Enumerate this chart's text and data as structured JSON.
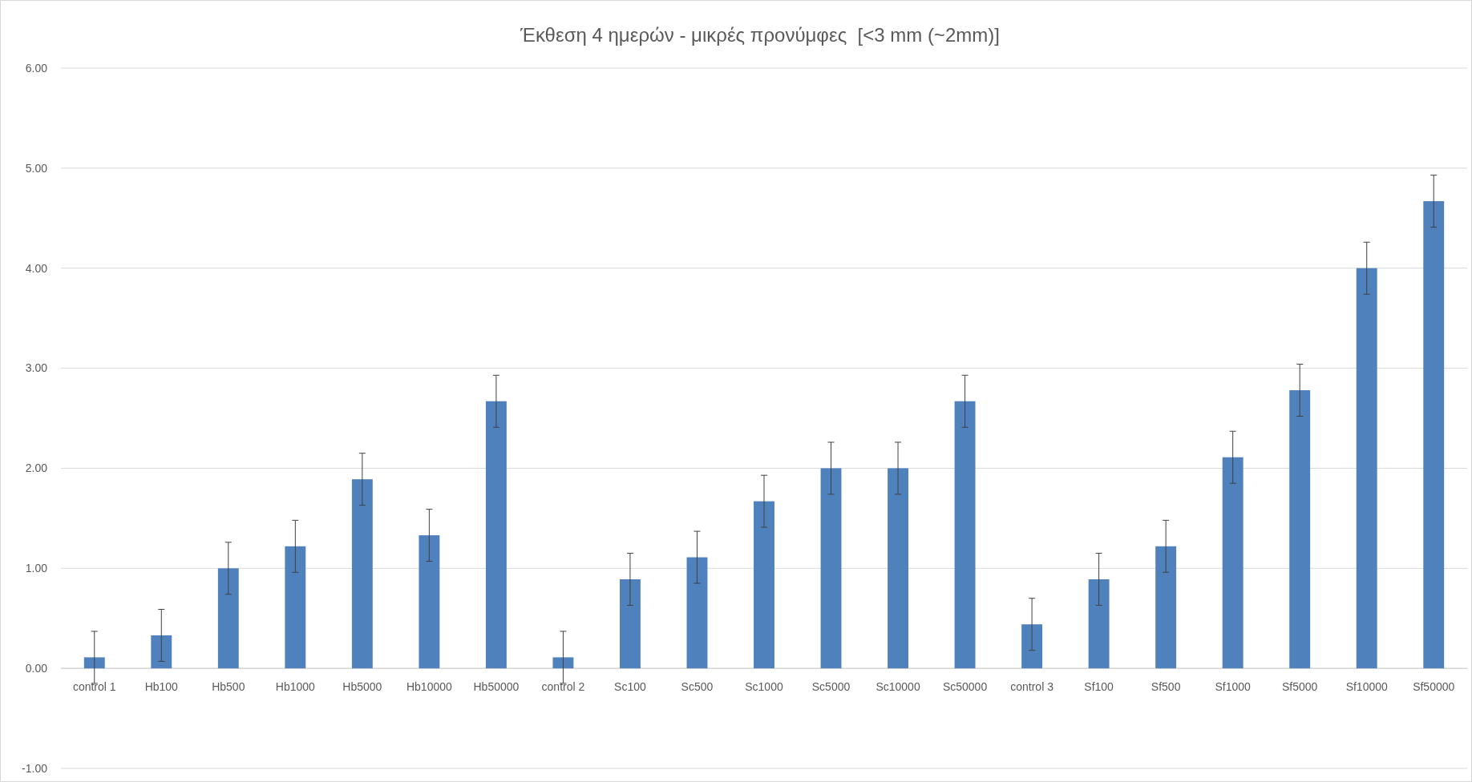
{
  "chart_data": {
    "type": "bar",
    "title": "Έκθεση 4 ημερών - μικρές προνύμφες  [<3 mm (~2mm)]",
    "categories": [
      "control 1",
      "Hb100",
      "Hb500",
      "Hb1000",
      "Hb5000",
      "Hb10000",
      "Hb50000",
      "control 2",
      "Sc100",
      "Sc500",
      "Sc1000",
      "Sc5000",
      "Sc10000",
      "Sc50000",
      "control 3",
      "Sf100",
      "Sf500",
      "Sf1000",
      "Sf5000",
      "Sf10000",
      "Sf50000"
    ],
    "values": [
      0.11,
      0.33,
      1.0,
      1.22,
      1.89,
      1.33,
      2.67,
      0.11,
      0.89,
      1.11,
      1.67,
      2.0,
      2.0,
      2.67,
      0.44,
      0.89,
      1.22,
      2.11,
      2.78,
      4.0,
      4.67
    ],
    "errors": [
      0.26,
      0.26,
      0.26,
      0.26,
      0.26,
      0.26,
      0.26,
      0.26,
      0.26,
      0.26,
      0.26,
      0.26,
      0.26,
      0.26,
      0.26,
      0.26,
      0.26,
      0.26,
      0.26,
      0.26,
      0.26
    ],
    "color": "#4f81bd",
    "ylim": [
      -1,
      6
    ],
    "yticks": [
      {
        "value": -1,
        "label": "-1.00"
      },
      {
        "value": 0,
        "label": "0.00"
      },
      {
        "value": 1,
        "label": "1.00"
      },
      {
        "value": 2,
        "label": "2.00"
      },
      {
        "value": 3,
        "label": "3.00"
      },
      {
        "value": 4,
        "label": "4.00"
      },
      {
        "value": 5,
        "label": "5.00"
      },
      {
        "value": 6,
        "label": "6.00"
      }
    ],
    "grid": "y"
  }
}
